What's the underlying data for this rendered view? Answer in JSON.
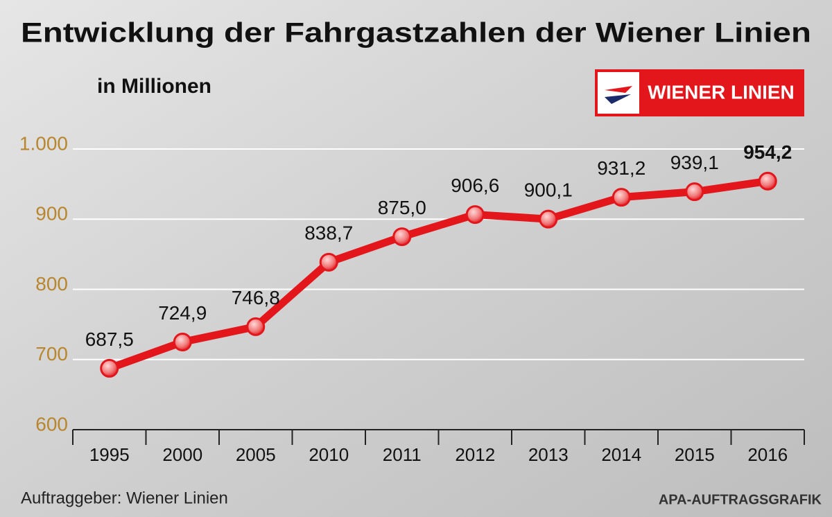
{
  "chart_data": {
    "type": "line",
    "title": "Entwicklung der Fahrgastzahlen der Wiener Linien",
    "subtitle": "in Millionen",
    "logo": "WIENER LINIEN",
    "categories": [
      "1995",
      "2000",
      "2005",
      "2010",
      "2011",
      "2012",
      "2013",
      "2014",
      "2015",
      "2016"
    ],
    "values": [
      687.5,
      724.9,
      746.8,
      838.7,
      875.0,
      906.6,
      900.1,
      931.2,
      939.1,
      954.2
    ],
    "value_labels": [
      "687,5",
      "724,9",
      "746,8",
      "838,7",
      "875,0",
      "906,6",
      "900,1",
      "931,2",
      "939,1",
      "954,2"
    ],
    "color": "#e3161c",
    "ylim": [
      600,
      1000
    ],
    "yticks": [
      600,
      700,
      800,
      900,
      {
        "value": 1000,
        "label": "1.000"
      }
    ],
    "grid": true,
    "source": "Auftraggeber: Wiener Linien",
    "credit": "APA-AUFTRAGSGRAFIK"
  }
}
